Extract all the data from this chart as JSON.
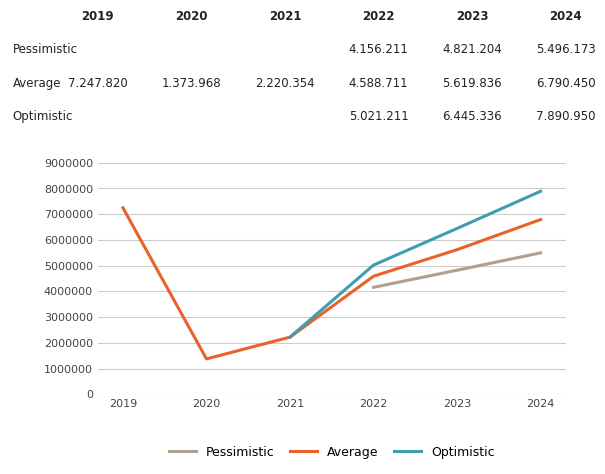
{
  "years_average": [
    2019,
    2020,
    2021,
    2022,
    2023,
    2024
  ],
  "average_values": [
    7247820,
    1373968,
    2220354,
    4588711,
    5619836,
    6790450
  ],
  "years_pessimistic": [
    2022,
    2023,
    2024
  ],
  "pessimistic_values": [
    4156211,
    4821204,
    5496173
  ],
  "years_optimistic": [
    2021,
    2022,
    2023,
    2024
  ],
  "optimistic_values": [
    2220354,
    5021211,
    6445336,
    7890950
  ],
  "average_color": "#E8622A",
  "pessimistic_color": "#B0A090",
  "optimistic_color": "#3E9DAF",
  "ylim": [
    0,
    9000000
  ],
  "yticks": [
    0,
    1000000,
    2000000,
    3000000,
    4000000,
    5000000,
    6000000,
    7000000,
    8000000,
    9000000
  ],
  "xticks": [
    2019,
    2020,
    2021,
    2022,
    2023,
    2024
  ],
  "table_header": [
    "2019",
    "2020",
    "2021",
    "2022",
    "2023",
    "2024"
  ],
  "row_labels": [
    "Pessimistic",
    "Average",
    "Optimistic"
  ],
  "row_data": [
    [
      "",
      "",
      "",
      "4.156.211",
      "4.821.204",
      "5.496.173"
    ],
    [
      "7.247.820",
      "1.373.968",
      "2.220.354",
      "4.588.711",
      "5.619.836",
      "6.790.450"
    ],
    [
      "",
      "",
      "",
      "5.021.211",
      "6.445.336",
      "7.890.950"
    ]
  ],
  "legend_labels": [
    "Pessimistic",
    "Average",
    "Optimistic"
  ],
  "bg_color": "#FFFFFF",
  "grid_color": "#CCCCCC",
  "line_width": 2.2,
  "font_size_table": 8.5,
  "font_size_axis": 8
}
